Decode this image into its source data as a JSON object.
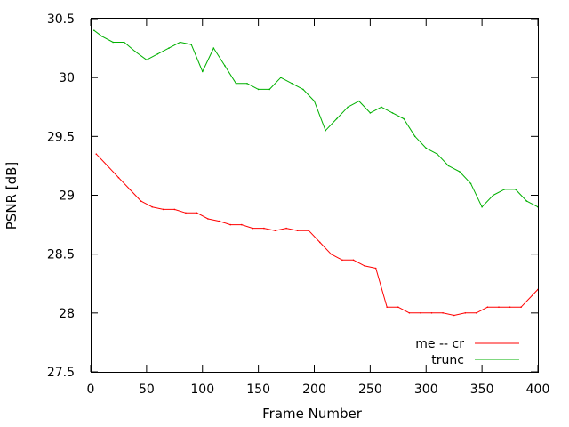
{
  "chart_data": {
    "type": "line",
    "title": "",
    "xlabel": "Frame Number",
    "ylabel": "PSNR [dB]",
    "xlim": [
      0,
      400
    ],
    "ylim": [
      27.5,
      30.5
    ],
    "xticks": [
      0,
      50,
      100,
      150,
      200,
      250,
      300,
      350,
      400
    ],
    "yticks": [
      27.5,
      28,
      28.5,
      29,
      29.5,
      30,
      30.5
    ],
    "xtick_labels": [
      "0",
      "50",
      "100",
      "150",
      "200",
      "250",
      "300",
      "350",
      "400"
    ],
    "ytick_labels": [
      "27.5",
      "28",
      "28.5",
      "29",
      "29.5",
      "30",
      "30.5"
    ],
    "grid": false,
    "legend_position": "bottom-right",
    "series": [
      {
        "name": "me -- cr",
        "color": "#ff0000",
        "x": [
          5,
          15,
          25,
          35,
          45,
          55,
          65,
          75,
          85,
          95,
          105,
          115,
          125,
          135,
          145,
          155,
          165,
          175,
          185,
          195,
          205,
          215,
          225,
          235,
          245,
          255,
          265,
          275,
          285,
          295,
          305,
          315,
          325,
          335,
          345,
          355,
          365,
          375,
          385,
          395,
          400
        ],
        "y": [
          29.35,
          29.25,
          29.15,
          29.05,
          28.95,
          28.9,
          28.88,
          28.88,
          28.85,
          28.85,
          28.8,
          28.78,
          28.75,
          28.75,
          28.72,
          28.72,
          28.7,
          28.72,
          28.7,
          28.7,
          28.6,
          28.5,
          28.45,
          28.45,
          28.4,
          28.38,
          28.05,
          28.05,
          28.0,
          28.0,
          28.0,
          28.0,
          27.98,
          28.0,
          28.0,
          28.05,
          28.05,
          28.05,
          28.05,
          28.15,
          28.2
        ]
      },
      {
        "name": "trunc",
        "color": "#00b000",
        "x": [
          3,
          10,
          20,
          30,
          40,
          50,
          60,
          70,
          80,
          90,
          100,
          110,
          120,
          130,
          140,
          150,
          160,
          170,
          180,
          190,
          200,
          210,
          220,
          230,
          240,
          250,
          260,
          270,
          280,
          290,
          300,
          310,
          320,
          330,
          340,
          350,
          360,
          370,
          380,
          390,
          400
        ],
        "y": [
          30.4,
          30.35,
          30.3,
          30.3,
          30.22,
          30.15,
          30.2,
          30.25,
          30.3,
          30.28,
          30.05,
          30.25,
          30.1,
          29.95,
          29.95,
          29.9,
          29.9,
          30.0,
          29.95,
          29.9,
          29.8,
          29.55,
          29.65,
          29.75,
          29.8,
          29.7,
          29.75,
          29.7,
          29.65,
          29.5,
          29.4,
          29.35,
          29.25,
          29.2,
          29.1,
          28.9,
          29.0,
          29.05,
          29.05,
          28.95,
          28.9
        ]
      }
    ]
  }
}
